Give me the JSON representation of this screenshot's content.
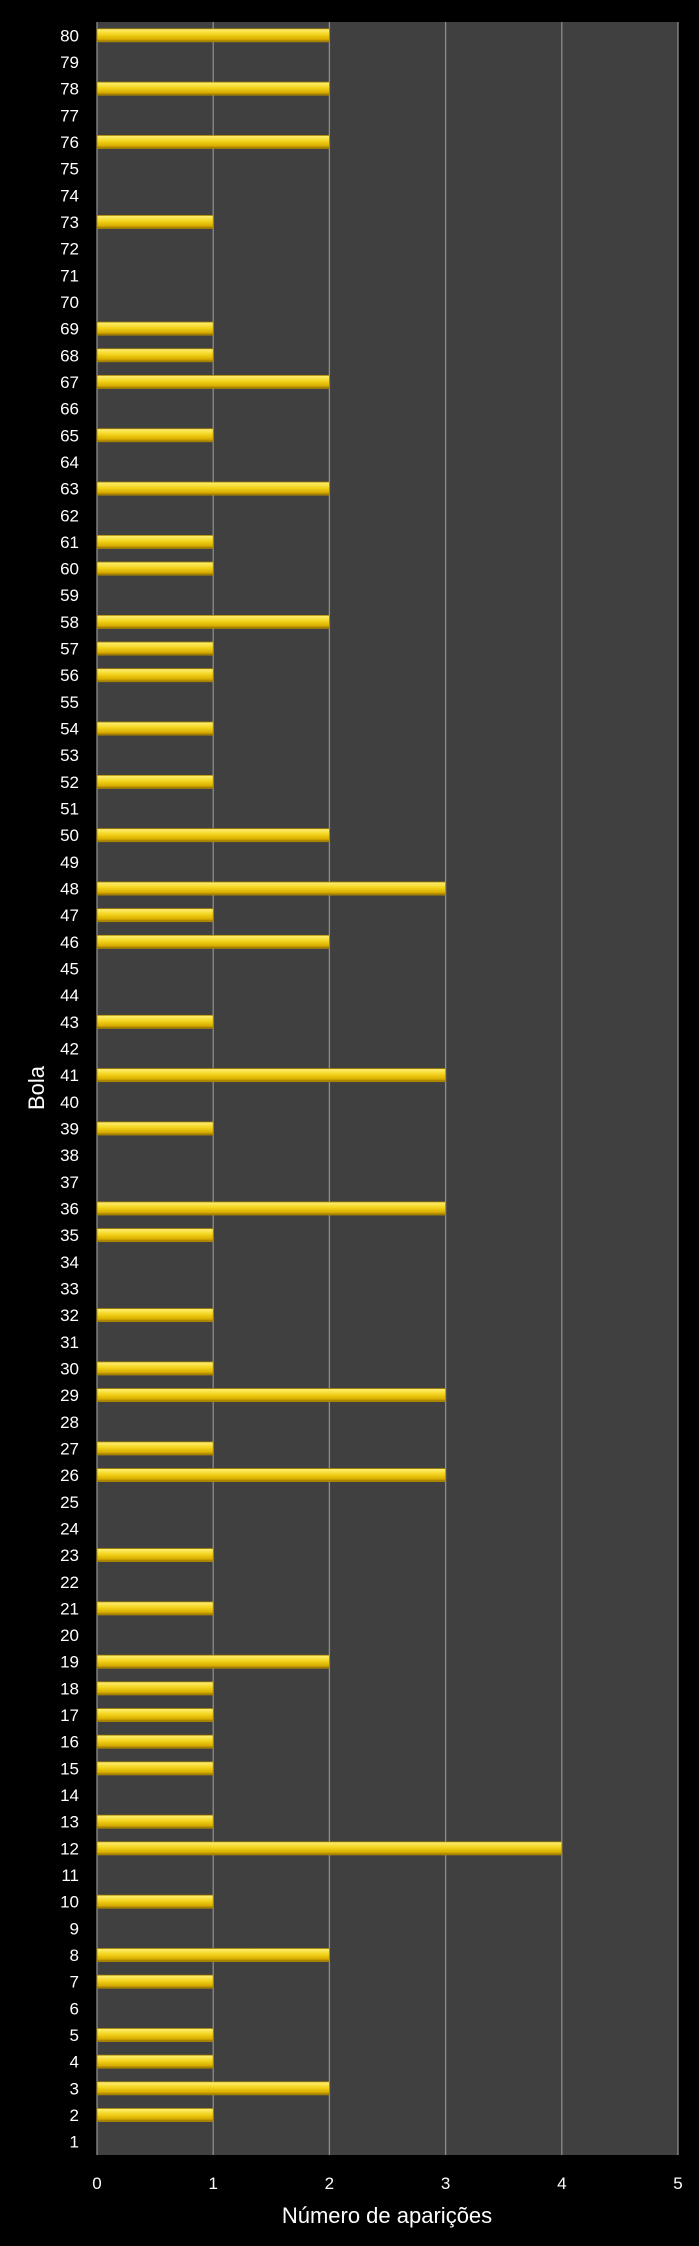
{
  "chart_data": {
    "type": "bar",
    "orientation": "horizontal",
    "title": "",
    "xlabel": "Número de aparições",
    "ylabel": "Bola",
    "xlim": [
      0,
      5
    ],
    "xticks": [
      0,
      1,
      2,
      3,
      4,
      5
    ],
    "grid": true,
    "legend": "none",
    "colors": {
      "background": "#000000",
      "plot_area": "#404040",
      "gridline": "#8c8c8c",
      "bar": "#f2d21a",
      "bar_highlight": "#fff27a",
      "bar_shadow": "#8a6a00",
      "text": "#ffffff"
    },
    "categories": [
      "1",
      "2",
      "3",
      "4",
      "5",
      "6",
      "7",
      "8",
      "9",
      "10",
      "11",
      "12",
      "13",
      "14",
      "15",
      "16",
      "17",
      "18",
      "19",
      "20",
      "21",
      "22",
      "23",
      "24",
      "25",
      "26",
      "27",
      "28",
      "29",
      "30",
      "31",
      "32",
      "33",
      "34",
      "35",
      "36",
      "37",
      "38",
      "39",
      "40",
      "41",
      "42",
      "43",
      "44",
      "45",
      "46",
      "47",
      "48",
      "49",
      "50",
      "51",
      "52",
      "53",
      "54",
      "55",
      "56",
      "57",
      "58",
      "59",
      "60",
      "61",
      "62",
      "63",
      "64",
      "65",
      "66",
      "67",
      "68",
      "69",
      "70",
      "71",
      "72",
      "73",
      "74",
      "75",
      "76",
      "77",
      "78",
      "79",
      "80"
    ],
    "values": [
      0,
      1,
      2,
      1,
      1,
      0,
      1,
      2,
      0,
      1,
      0,
      4,
      1,
      0,
      1,
      1,
      1,
      1,
      2,
      0,
      1,
      0,
      1,
      0,
      0,
      3,
      1,
      0,
      3,
      1,
      0,
      1,
      0,
      0,
      1,
      3,
      0,
      0,
      1,
      0,
      3,
      0,
      1,
      0,
      0,
      2,
      1,
      3,
      0,
      2,
      0,
      1,
      0,
      1,
      0,
      1,
      1,
      2,
      0,
      1,
      1,
      0,
      2,
      0,
      1,
      0,
      2,
      1,
      1,
      0,
      0,
      0,
      1,
      0,
      0,
      2,
      0,
      2,
      0,
      2
    ]
  }
}
